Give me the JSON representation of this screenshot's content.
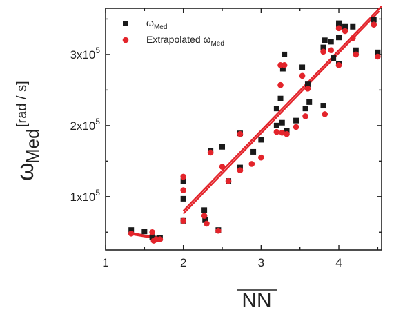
{
  "chart_data": {
    "type": "scatter",
    "xlabel": "NN",
    "ylabel": {
      "symbol": "ω",
      "subscript": "Med",
      "unit": "[rad / s]"
    },
    "xlim": [
      1,
      4.55
    ],
    "ylim": [
      25000,
      365000
    ],
    "xticks": [
      1,
      2,
      3,
      4
    ],
    "yticks": [
      100000,
      200000,
      300000
    ],
    "ytick_labels": [
      {
        "base": "1x10",
        "exp": "5"
      },
      {
        "base": "2x10",
        "exp": "5"
      },
      {
        "base": "3x10",
        "exp": "5"
      }
    ],
    "legend_position": "top-left",
    "series": [
      {
        "name_base": "ω",
        "name_sub": "Med",
        "marker": "square",
        "color": "#1a1a1a",
        "points": [
          [
            1.33,
            53000
          ],
          [
            1.5,
            51000
          ],
          [
            1.6,
            43000
          ],
          [
            1.65,
            41000
          ],
          [
            1.7,
            42000
          ],
          [
            2.0,
            122000
          ],
          [
            2.0,
            97000
          ],
          [
            2.0,
            66000
          ],
          [
            2.27,
            81000
          ],
          [
            2.28,
            67000
          ],
          [
            2.35,
            164000
          ],
          [
            2.45,
            53000
          ],
          [
            2.5,
            170000
          ],
          [
            2.58,
            122000
          ],
          [
            2.73,
            141000
          ],
          [
            2.73,
            189000
          ],
          [
            2.9,
            163000
          ],
          [
            3.0,
            180000
          ],
          [
            3.2,
            224000
          ],
          [
            3.2,
            200000
          ],
          [
            3.25,
            238000
          ],
          [
            3.27,
            204000
          ],
          [
            3.28,
            280000
          ],
          [
            3.3,
            300000
          ],
          [
            3.33,
            193000
          ],
          [
            3.45,
            207000
          ],
          [
            3.53,
            282000
          ],
          [
            3.57,
            224000
          ],
          [
            3.6,
            258000
          ],
          [
            3.62,
            233000
          ],
          [
            3.8,
            228000
          ],
          [
            3.8,
            310000
          ],
          [
            3.82,
            320000
          ],
          [
            3.9,
            318000
          ],
          [
            3.93,
            295000
          ],
          [
            4.0,
            344000
          ],
          [
            4.0,
            341000
          ],
          [
            4.0,
            324000
          ],
          [
            4.0,
            287000
          ],
          [
            4.08,
            339000
          ],
          [
            4.18,
            339000
          ],
          [
            4.22,
            306000
          ],
          [
            4.45,
            349000
          ],
          [
            4.5,
            303000
          ]
        ],
        "fit": [
          [
            1.33,
            49000
          ],
          [
            1.72,
            41000
          ]
        ]
      },
      {
        "name_base": "Extrapolated ω",
        "name_sub": "Med",
        "marker": "circle",
        "color": "#e3242b",
        "points": [
          [
            1.33,
            48000
          ],
          [
            1.6,
            50000
          ],
          [
            1.62,
            38000
          ],
          [
            1.65,
            40000
          ],
          [
            1.7,
            40000
          ],
          [
            2.0,
            128000
          ],
          [
            2.0,
            109000
          ],
          [
            2.0,
            66000
          ],
          [
            2.27,
            73000
          ],
          [
            2.3,
            62000
          ],
          [
            2.35,
            162000
          ],
          [
            2.45,
            52000
          ],
          [
            2.5,
            142000
          ],
          [
            2.58,
            122000
          ],
          [
            2.73,
            137000
          ],
          [
            2.73,
            188000
          ],
          [
            2.88,
            146000
          ],
          [
            3.0,
            155000
          ],
          [
            3.2,
            191000
          ],
          [
            3.25,
            257000
          ],
          [
            3.25,
            285000
          ],
          [
            3.27,
            190000
          ],
          [
            3.3,
            285000
          ],
          [
            3.33,
            188000
          ],
          [
            3.45,
            198000
          ],
          [
            3.53,
            270000
          ],
          [
            3.57,
            213000
          ],
          [
            3.6,
            252000
          ],
          [
            3.82,
            216000
          ],
          [
            3.8,
            304000
          ],
          [
            3.9,
            306000
          ],
          [
            4.0,
            337000
          ],
          [
            4.0,
            285000
          ],
          [
            4.08,
            333000
          ],
          [
            4.18,
            323000
          ],
          [
            4.22,
            300000
          ],
          [
            4.45,
            342000
          ],
          [
            4.5,
            297000
          ]
        ],
        "fit": [
          [
            1.33,
            47000
          ],
          [
            1.72,
            40000
          ]
        ]
      }
    ],
    "trend_lines": [
      {
        "color": "#e3242b",
        "from": [
          2.0,
          76000
        ],
        "to": [
          4.52,
          361000
        ]
      },
      {
        "color": "#e3242b",
        "from": [
          2.0,
          80000
        ],
        "to": [
          4.55,
          368000
        ]
      }
    ]
  }
}
